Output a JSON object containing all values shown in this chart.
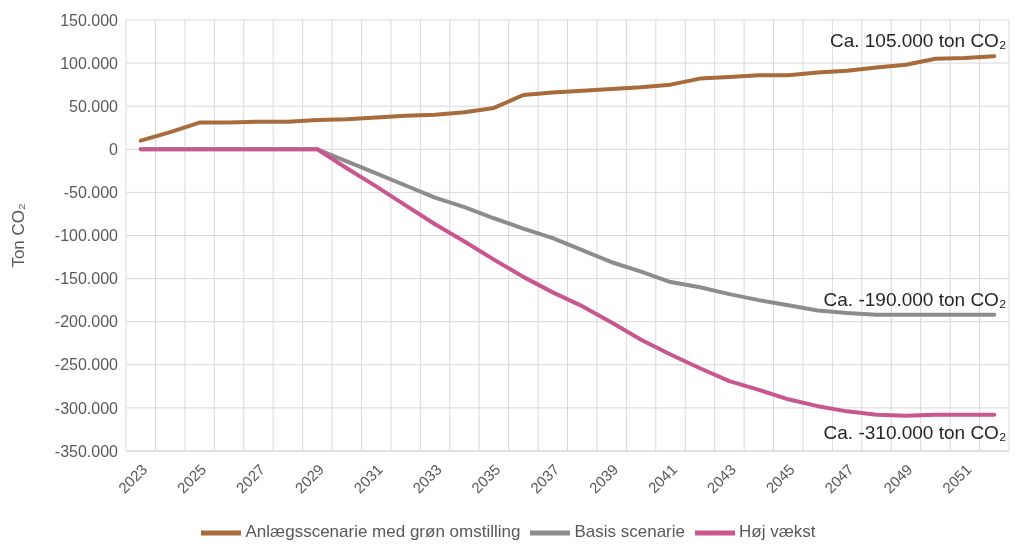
{
  "chart_data": {
    "type": "line",
    "ylabel": "Ton CO₂",
    "categories": [
      "2023",
      null,
      "2025",
      null,
      "2027",
      null,
      "2029",
      null,
      "2031",
      null,
      "2033",
      null,
      "2035",
      null,
      "2037",
      null,
      "2039",
      null,
      "2041",
      null,
      "2043",
      null,
      "2045",
      null,
      "2047",
      null,
      "2049",
      null,
      "2051",
      null
    ],
    "series": [
      {
        "name": "Anlægsscenarie med grøn omstilling",
        "color": "#a86b3c",
        "values": [
          10000,
          20000,
          31000,
          31000,
          32000,
          32000,
          34000,
          35000,
          37000,
          39000,
          40000,
          43000,
          48000,
          63000,
          66000,
          68000,
          70000,
          72000,
          75000,
          82000,
          84000,
          86000,
          86000,
          89000,
          91000,
          95000,
          98000,
          105000,
          106000,
          108000
        ]
      },
      {
        "name": "Basis scenarie",
        "color": "#8c8c8c",
        "values": [
          0,
          0,
          0,
          0,
          0,
          0,
          0,
          -14000,
          -28000,
          -42000,
          -56000,
          -67000,
          -80000,
          -92000,
          -103000,
          -117000,
          -131000,
          -142000,
          -154000,
          -160000,
          -168000,
          -175000,
          -181000,
          -187000,
          -190000,
          -192000,
          -192000,
          -192000,
          -192000,
          -192000
        ]
      },
      {
        "name": "Høj vækst",
        "color": "#c9578f",
        "values": [
          0,
          0,
          0,
          0,
          0,
          0,
          0,
          -22000,
          -43000,
          -65000,
          -87000,
          -107000,
          -128000,
          -148000,
          -166000,
          -182000,
          -201000,
          -221000,
          -238000,
          -254000,
          -269000,
          -279000,
          -290000,
          -298000,
          -304000,
          -308000,
          -309000,
          -308000,
          -308000,
          -308000
        ]
      }
    ],
    "ylim": [
      -350000,
      150000
    ],
    "yticks": [
      {
        "value": -350000,
        "label": "-350.000"
      },
      {
        "value": -300000,
        "label": "-300.000"
      },
      {
        "value": -250000,
        "label": "-250.000"
      },
      {
        "value": -200000,
        "label": "-200.000"
      },
      {
        "value": -150000,
        "label": "-150.000"
      },
      {
        "value": -100000,
        "label": "-100.000"
      },
      {
        "value": -50000,
        "label": "-50.000"
      },
      0,
      {
        "value": 50000,
        "label": "50.000"
      },
      {
        "value": 100000,
        "label": "100.000"
      },
      {
        "value": 150000,
        "label": "150.000"
      }
    ],
    "annotations": [
      {
        "text": "Ca. 105.000 ton CO₂",
        "y": 108000
      },
      {
        "text": "Ca. -190.000 ton CO₂",
        "y": -192000
      },
      {
        "text": "Ca. -310.000 ton CO₂",
        "y": -308000
      }
    ],
    "grid": true,
    "legend": "bottom",
    "marker": "none",
    "line_style": "solid"
  }
}
